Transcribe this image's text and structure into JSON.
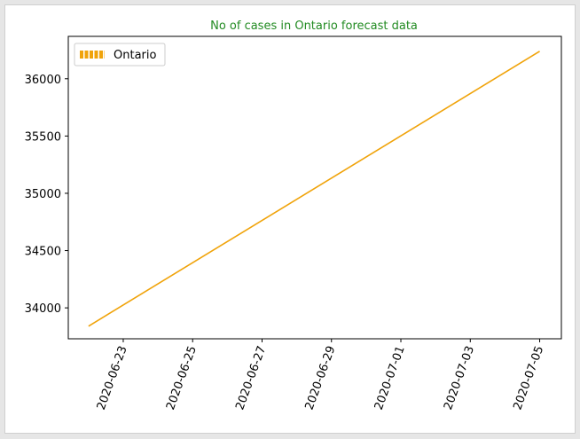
{
  "chart_data": {
    "type": "line",
    "title": "No of cases in Ontario forecast data",
    "xlabel": "",
    "ylabel": "",
    "x_start": "2020-06-22",
    "x_end": "2020-07-05",
    "xlim": [
      "2020-06-21T10:00",
      "2020-07-05T15:00"
    ],
    "ylim": [
      33730,
      36370
    ],
    "x_ticks": [
      "2020-06-23",
      "2020-06-25",
      "2020-06-27",
      "2020-06-29",
      "2020-07-01",
      "2020-07-03",
      "2020-07-05"
    ],
    "y_ticks": [
      34000,
      34500,
      35000,
      35500,
      36000
    ],
    "series": [
      {
        "name": "Ontario",
        "color": "#f0a30a",
        "x": [
          "2020-06-22",
          "2020-07-05"
        ],
        "values": [
          33840,
          36240
        ]
      }
    ],
    "legend_position": "top-left",
    "grid": false,
    "title_color": "#228b22"
  }
}
